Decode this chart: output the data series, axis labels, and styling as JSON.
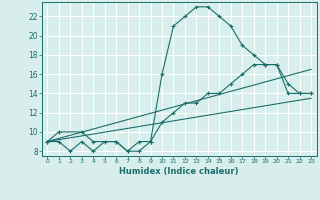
{
  "xlabel": "Humidex (Indice chaleur)",
  "bg_color": "#d8eeed",
  "grid_color": "#ffffff",
  "line_color": "#1a6e6a",
  "xlim": [
    -0.5,
    23.5
  ],
  "ylim": [
    7.5,
    23.5
  ],
  "xticks": [
    0,
    1,
    2,
    3,
    4,
    5,
    6,
    7,
    8,
    9,
    10,
    11,
    12,
    13,
    14,
    15,
    16,
    17,
    18,
    19,
    20,
    21,
    22,
    23
  ],
  "yticks": [
    8,
    10,
    12,
    14,
    16,
    18,
    20,
    22
  ],
  "series": [
    {
      "x": [
        0,
        1,
        2,
        3,
        4,
        5,
        6,
        7,
        8,
        9,
        10,
        11,
        12,
        13,
        14,
        15,
        16,
        17,
        18,
        19,
        20,
        21,
        22,
        23
      ],
      "y": [
        9,
        9,
        8,
        9,
        8,
        9,
        9,
        8,
        9,
        9,
        16,
        21,
        22,
        23,
        23,
        22,
        21,
        19,
        18,
        17,
        17,
        14,
        14,
        14
      ],
      "marker": true
    },
    {
      "x": [
        0,
        1,
        3,
        4,
        6,
        7,
        8,
        9,
        10,
        11,
        12,
        13,
        14,
        15,
        16,
        17,
        18,
        19,
        20,
        21,
        22,
        23
      ],
      "y": [
        9,
        10,
        10,
        9,
        9,
        8,
        8,
        9,
        11,
        12,
        13,
        13,
        14,
        14,
        15,
        16,
        17,
        17,
        17,
        15,
        14,
        14
      ],
      "marker": true
    },
    {
      "x": [
        0,
        23
      ],
      "y": [
        9,
        13.5
      ],
      "marker": false
    },
    {
      "x": [
        0,
        23
      ],
      "y": [
        9,
        16.5
      ],
      "marker": false
    }
  ]
}
